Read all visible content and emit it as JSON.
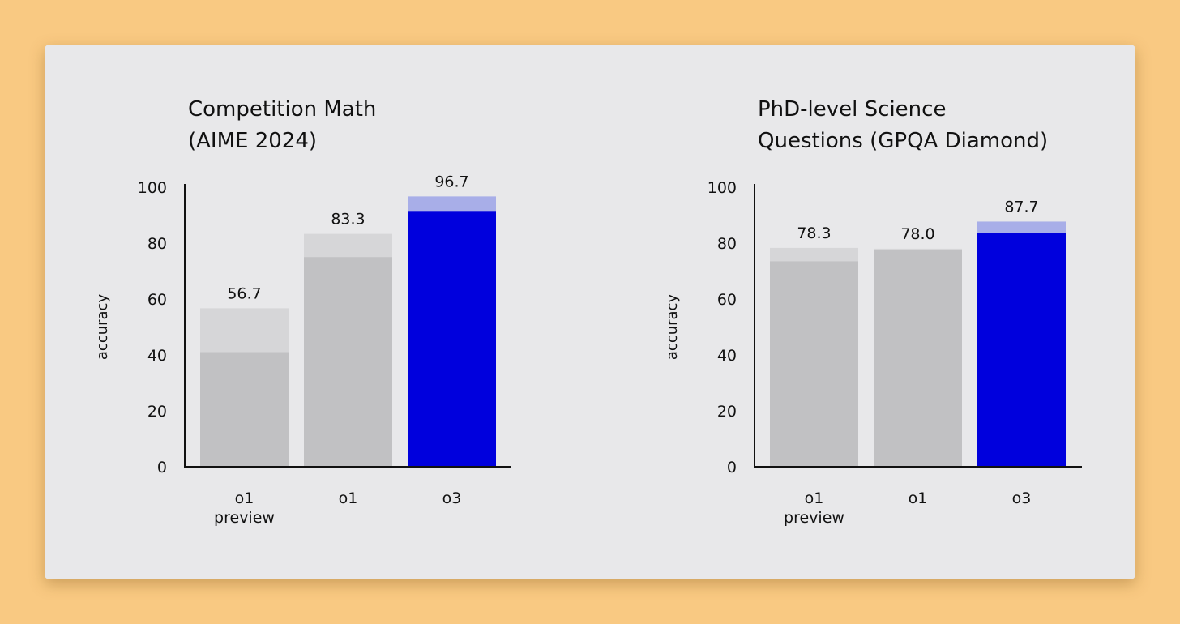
{
  "colors": {
    "page_background": "#f9c982",
    "card_background": "#e8e8ea",
    "bar_gray": "#c1c1c3",
    "bar_gray_light": "#d6d6d8",
    "bar_blue": "#0000dd",
    "bar_blue_light": "#a8aee8",
    "axis": "#111111"
  },
  "chart_data": [
    {
      "type": "bar",
      "title_lines": [
        "Competition Math",
        "(AIME 2024)"
      ],
      "ylabel": "accuracy",
      "ylim": [
        0,
        100
      ],
      "yticks": [
        "0",
        "20",
        "40",
        "60",
        "80",
        "100"
      ],
      "categories": [
        [
          "o1",
          "preview"
        ],
        [
          "o1"
        ],
        [
          "o3"
        ]
      ],
      "values": [
        56.7,
        83.3,
        96.7
      ],
      "value_labels": [
        "56.7",
        "83.3",
        "96.7"
      ],
      "inner_values": [
        41,
        75,
        91.5
      ],
      "highlight": [
        false,
        false,
        true
      ]
    },
    {
      "type": "bar",
      "title_lines": [
        "PhD-level Science",
        "Questions (GPQA Diamond)"
      ],
      "ylabel": "accuracy",
      "ylim": [
        0,
        100
      ],
      "yticks": [
        "0",
        "20",
        "40",
        "60",
        "80",
        "100"
      ],
      "categories": [
        [
          "o1",
          "preview"
        ],
        [
          "o1"
        ],
        [
          "o3"
        ]
      ],
      "values": [
        78.3,
        78.0,
        87.7
      ],
      "value_labels": [
        "78.3",
        "78.0",
        "87.7"
      ],
      "inner_values": [
        73.5,
        77.5,
        83.5
      ],
      "highlight": [
        false,
        false,
        true
      ]
    }
  ]
}
